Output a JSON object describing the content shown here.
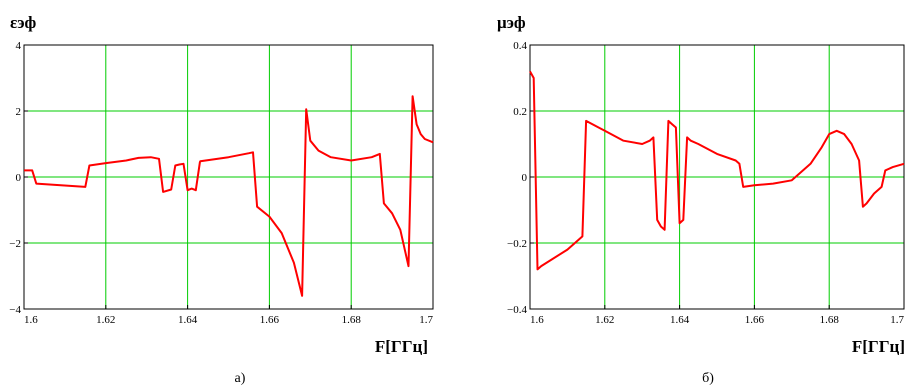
{
  "chart_data": [
    {
      "type": "line",
      "ylabel": "εэф",
      "xlabel": "F[ГГц]",
      "caption": "а)",
      "xlim": [
        1.6,
        1.7
      ],
      "ylim": [
        -4,
        4
      ],
      "x_ticks": [
        "1.6",
        "1.62",
        "1.64",
        "1.66",
        "1.68",
        "1.7"
      ],
      "y_ticks": [
        "4",
        "2",
        "0",
        "−2",
        "−4"
      ],
      "grid": true,
      "line_color": "#ff0000",
      "grid_color": "#00cc00",
      "series": [
        {
          "x": [
            1.6,
            1.602,
            1.603,
            1.615,
            1.616,
            1.62,
            1.625,
            1.628,
            1.631,
            1.633,
            1.634,
            1.636,
            1.637,
            1.638,
            1.639,
            1.64,
            1.641,
            1.642,
            1.643,
            1.6431,
            1.65,
            1.655,
            1.656,
            1.657,
            1.66,
            1.663,
            1.666,
            1.668,
            1.669,
            1.67,
            1.672,
            1.675,
            1.68,
            1.685,
            1.687,
            1.688,
            1.69,
            1.692,
            1.694,
            1.695,
            1.696,
            1.697,
            1.698,
            1.7
          ],
          "y": [
            0.2,
            0.2,
            -0.2,
            -0.3,
            0.35,
            0.42,
            0.5,
            0.58,
            0.6,
            0.55,
            -0.45,
            -0.38,
            0.35,
            0.38,
            0.4,
            -0.4,
            -0.35,
            -0.4,
            0.45,
            0.48,
            0.6,
            0.72,
            0.75,
            -0.9,
            -1.2,
            -1.7,
            -2.6,
            -3.6,
            2.05,
            1.1,
            0.8,
            0.6,
            0.5,
            0.6,
            0.7,
            -0.8,
            -1.1,
            -1.6,
            -2.7,
            2.45,
            1.6,
            1.3,
            1.15,
            1.05
          ]
        }
      ]
    },
    {
      "type": "line",
      "ylabel": "μэф",
      "xlabel": "F[ГГц]",
      "caption": "б)",
      "xlim": [
        1.6,
        1.7
      ],
      "ylim": [
        -0.4,
        0.4
      ],
      "x_ticks": [
        "1.6",
        "1.62",
        "1.64",
        "1.66",
        "1.68",
        "1.7"
      ],
      "y_ticks": [
        "0.4",
        "0.2",
        "0",
        "−0.2",
        "−0.4"
      ],
      "grid": true,
      "line_color": "#ff0000",
      "grid_color": "#00cc00",
      "series": [
        {
          "x": [
            1.6,
            1.601,
            1.602,
            1.603,
            1.61,
            1.613,
            1.614,
            1.615,
            1.62,
            1.625,
            1.63,
            1.632,
            1.633,
            1.634,
            1.635,
            1.636,
            1.637,
            1.638,
            1.639,
            1.64,
            1.641,
            1.642,
            1.643,
            1.645,
            1.65,
            1.655,
            1.656,
            1.657,
            1.66,
            1.665,
            1.67,
            1.675,
            1.678,
            1.68,
            1.682,
            1.684,
            1.686,
            1.688,
            1.689,
            1.69,
            1.692,
            1.694,
            1.695,
            1.697,
            1.7
          ],
          "y": [
            0.32,
            0.3,
            -0.28,
            -0.27,
            -0.22,
            -0.19,
            -0.18,
            0.17,
            0.14,
            0.11,
            0.1,
            0.11,
            0.12,
            -0.13,
            -0.15,
            -0.16,
            0.17,
            0.16,
            0.15,
            -0.14,
            -0.13,
            0.12,
            0.11,
            0.1,
            0.07,
            0.05,
            0.04,
            -0.03,
            -0.025,
            -0.02,
            -0.01,
            0.04,
            0.09,
            0.13,
            0.14,
            0.13,
            0.1,
            0.05,
            -0.09,
            -0.08,
            -0.05,
            -0.03,
            0.02,
            0.03,
            0.04
          ]
        }
      ]
    }
  ]
}
